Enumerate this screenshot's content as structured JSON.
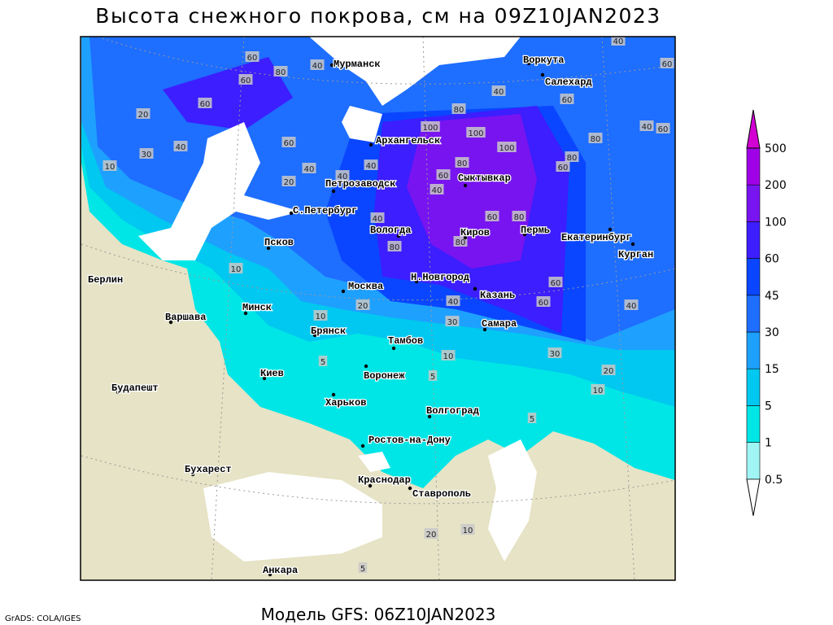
{
  "title": "Высота снежного покрова, см на 09Z10JAN2023",
  "footer": "Модель GFS: 06Z10JAN2023",
  "credit": "GrADS: COLA/IGES",
  "map": {
    "cities": [
      "Мурманск",
      "Воркута",
      "Салехард",
      "Архангельск",
      "Сыктывкар",
      "Петрозаводск",
      "С.Петербург",
      "Вологда",
      "Киров",
      "Пермь",
      "Екатеринбург",
      "Курган",
      "Псков",
      "Н.Новгород",
      "Москва",
      "Казань",
      "Берлин",
      "Варшава",
      "Минск",
      "Брянск",
      "Тамбов",
      "Самара",
      "Киев",
      "Воронеж",
      "Харьков",
      "Будапешт",
      "Волгоград",
      "Ростов-на-Дону",
      "Бухарест",
      "Краснодар",
      "Ставрополь",
      "Анкара"
    ],
    "contour_labels": [
      60,
      80,
      40,
      60,
      40,
      40,
      60,
      40,
      60,
      60,
      20,
      60,
      40,
      30,
      10,
      60,
      40,
      40,
      20,
      40,
      80,
      100,
      100,
      100,
      80,
      80,
      60,
      80,
      60,
      40,
      40,
      60,
      80,
      80,
      80,
      60,
      60,
      40,
      40,
      30,
      20,
      10,
      10,
      5,
      10,
      30,
      20,
      10,
      5,
      5,
      20,
      10,
      5
    ]
  },
  "colorbar": {
    "levels": [
      0.5,
      1,
      5,
      15,
      30,
      45,
      60,
      100,
      200,
      500
    ],
    "below_color": "#ffffff",
    "colors": [
      "#a0f5f5",
      "#00e6e6",
      "#00c8f0",
      "#1ea0ff",
      "#1e6eff",
      "#0a46ff",
      "#3c1eff",
      "#7814f0",
      "#a000e6"
    ],
    "above_color": "#d200d2"
  }
}
